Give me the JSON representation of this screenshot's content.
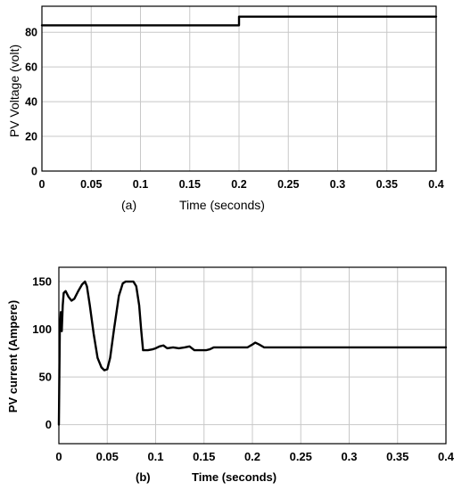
{
  "chart_data": [
    {
      "type": "line",
      "panel_label": "(a)",
      "title": "",
      "xlabel": "Time (seconds)",
      "ylabel": "PV Voltage (volt)",
      "xlim": [
        0,
        0.4
      ],
      "ylim": [
        0,
        95
      ],
      "xticks": [
        0,
        0.05,
        0.1,
        0.15,
        0.2,
        0.25,
        0.3,
        0.35,
        0.4
      ],
      "xtick_labels": [
        "0",
        "0.05",
        "0.1",
        "0.15",
        "0.2",
        "0.25",
        "0.3",
        "0.35",
        "0.4"
      ],
      "yticks": [
        0,
        20,
        40,
        60,
        80
      ],
      "ytick_labels": [
        "0",
        "20",
        "40",
        "60",
        "80"
      ],
      "grid": true,
      "series": [
        {
          "x": [
            0,
            0.2,
            0.2,
            0.4
          ],
          "y": [
            84,
            84,
            89,
            89
          ]
        }
      ]
    },
    {
      "type": "line",
      "panel_label": "(b)",
      "title": "",
      "xlabel": "Time (seconds)",
      "ylabel": "PV current (Ampere)",
      "xlim": [
        0,
        0.4
      ],
      "ylim": [
        -20,
        165
      ],
      "xticks": [
        0,
        0.05,
        0.1,
        0.15,
        0.2,
        0.25,
        0.3,
        0.35,
        0.4
      ],
      "xtick_labels": [
        "0",
        "0.05",
        "0.1",
        "0.15",
        "0.2",
        "0.25",
        "0.3",
        "0.35",
        "0.4"
      ],
      "yticks": [
        0,
        50,
        100,
        150
      ],
      "ytick_labels": [
        "0",
        "50",
        "100",
        "150"
      ],
      "grid": true,
      "series": [
        {
          "x": [
            0,
            0.001,
            0.002,
            0.003,
            0.004,
            0.005,
            0.007,
            0.01,
            0.013,
            0.016,
            0.02,
            0.024,
            0.027,
            0.029,
            0.032,
            0.036,
            0.04,
            0.044,
            0.047,
            0.05,
            0.053,
            0.057,
            0.062,
            0.066,
            0.069,
            0.073,
            0.077,
            0.08,
            0.083,
            0.085,
            0.087,
            0.092,
            0.097,
            0.1,
            0.104,
            0.108,
            0.112,
            0.118,
            0.124,
            0.13,
            0.135,
            0.14,
            0.146,
            0.152,
            0.156,
            0.16,
            0.17,
            0.185,
            0.195,
            0.2,
            0.203,
            0.207,
            0.212,
            0.22,
            0.25,
            0.3,
            0.35,
            0.4
          ],
          "y": [
            0,
            100,
            118,
            98,
            125,
            138,
            140,
            134,
            130,
            132,
            140,
            147,
            150,
            145,
            125,
            95,
            70,
            60,
            57,
            58,
            70,
            100,
            135,
            148,
            150,
            150,
            150,
            145,
            125,
            100,
            78,
            78,
            79,
            80,
            82,
            83,
            80,
            81,
            80,
            81,
            82,
            78,
            78,
            78,
            79,
            81,
            81,
            81,
            81,
            84,
            86,
            84,
            81,
            81,
            81,
            81,
            81,
            81
          ]
        }
      ]
    }
  ]
}
